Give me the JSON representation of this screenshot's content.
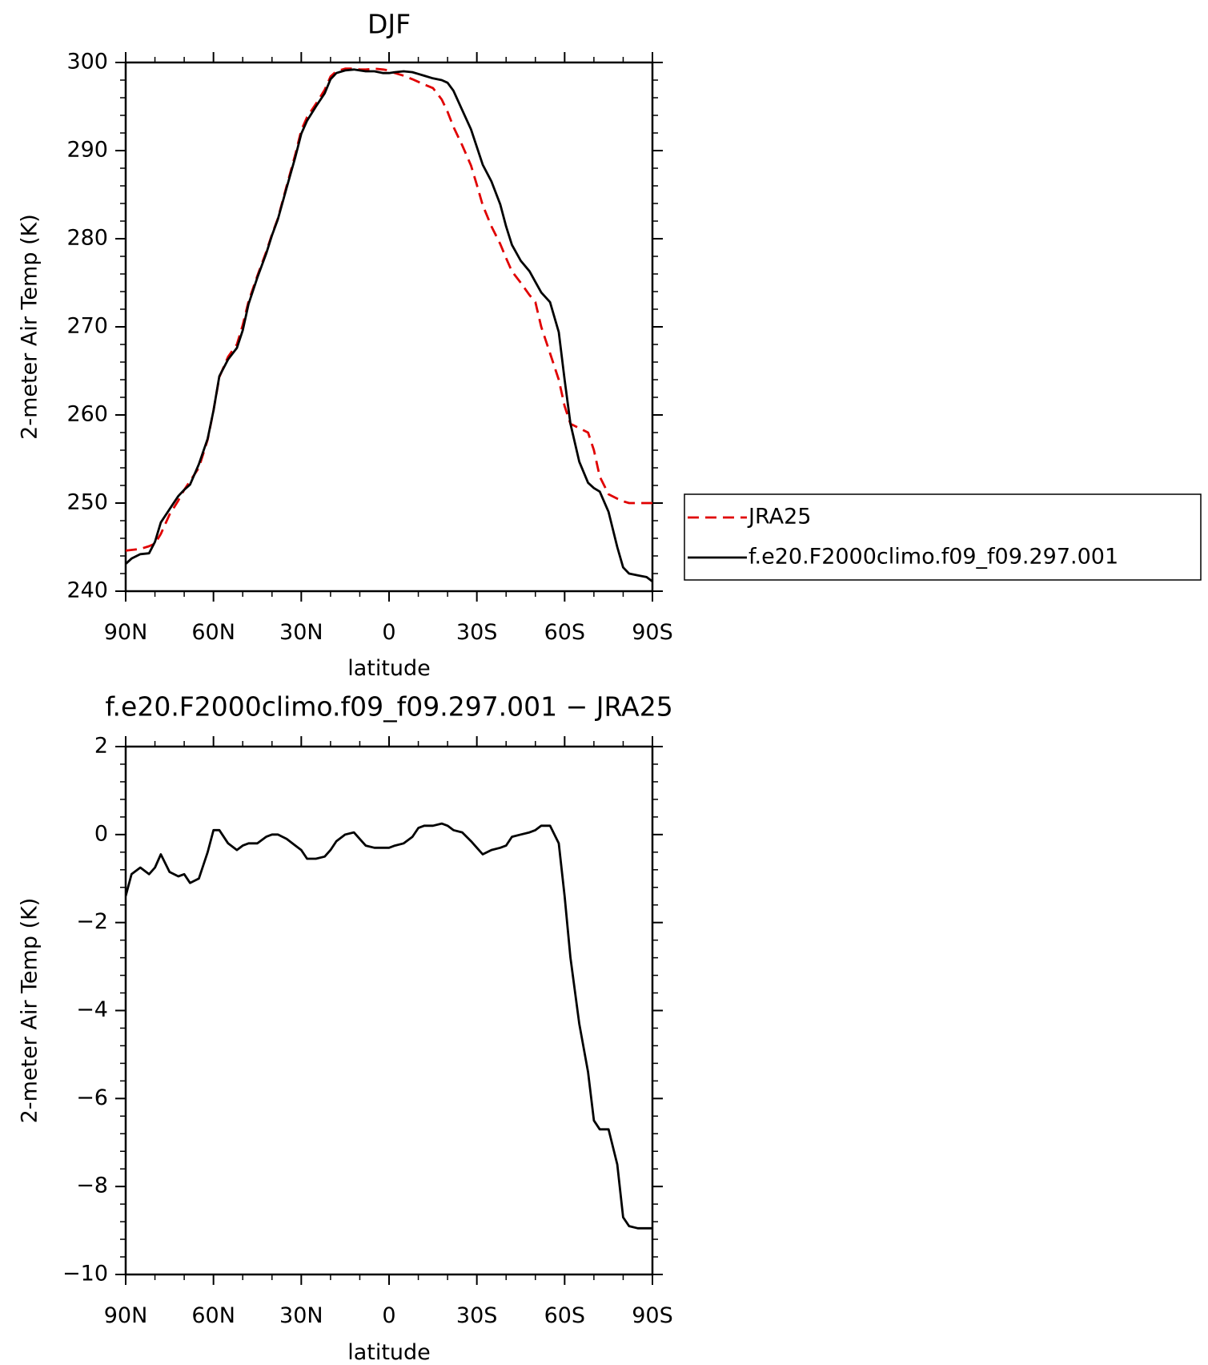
{
  "chart_data": [
    {
      "type": "line",
      "title": "DJF",
      "xlabel": "latitude",
      "ylabel": "2-meter Air Temp (K)",
      "xlim": [
        90,
        -90
      ],
      "ylim": [
        240,
        300
      ],
      "xticks": [
        90,
        60,
        30,
        0,
        -30,
        -60,
        -90
      ],
      "xtick_labels": [
        "90N",
        "60N",
        "30N",
        "0",
        "30S",
        "60S",
        "90S"
      ],
      "yticks": [
        240,
        250,
        260,
        270,
        280,
        290,
        300
      ],
      "ytick_labels": [
        "240",
        "250",
        "260",
        "270",
        "280",
        "290",
        "300"
      ],
      "legend_position": "right",
      "series": [
        {
          "name": "JRA25",
          "color": "#e00000",
          "style": "dashed",
          "x": [
            90,
            85,
            82,
            80,
            78,
            75,
            72,
            70,
            68,
            65,
            62,
            60,
            58,
            55,
            52,
            50,
            48,
            45,
            42,
            40,
            38,
            35,
            32,
            30,
            28,
            25,
            22,
            20,
            18,
            15,
            12,
            10,
            8,
            5,
            2,
            0,
            -2,
            -5,
            -8,
            -10,
            -12,
            -15,
            -18,
            -20,
            -22,
            -25,
            -28,
            -30,
            -32,
            -35,
            -38,
            -40,
            -42,
            -45,
            -48,
            -50,
            -52,
            -55,
            -58,
            -60,
            -62,
            -65,
            -68,
            -70,
            -72,
            -75,
            -78,
            -80,
            -82,
            -85,
            -88,
            -90
          ],
          "y": [
            244.6,
            244.8,
            245.1,
            245.4,
            246.5,
            248.7,
            250.3,
            251.5,
            252.5,
            254.0,
            257.2,
            260.5,
            264.3,
            266.6,
            268.0,
            270.2,
            272.9,
            275.8,
            278.5,
            280.5,
            282.3,
            286.0,
            289.6,
            292.3,
            293.8,
            295.3,
            296.9,
            298.4,
            299.0,
            299.3,
            299.3,
            299.2,
            299.2,
            299.3,
            299.2,
            299.1,
            298.8,
            298.5,
            298.1,
            297.8,
            297.5,
            297.1,
            295.8,
            294.4,
            292.7,
            290.6,
            288.3,
            286.1,
            283.8,
            281.4,
            279.4,
            277.8,
            276.3,
            275.0,
            273.6,
            272.8,
            270.0,
            267.0,
            264.0,
            261.0,
            259.0,
            258.5,
            258.0,
            256.0,
            253.0,
            251.0,
            250.5,
            250.2,
            250.0,
            250.0,
            250.0,
            250.0
          ]
        },
        {
          "name": "f.e20.F2000climo.f09_f09.297.001",
          "color": "#000000",
          "style": "solid",
          "x": [
            90,
            88,
            85,
            82,
            80,
            78,
            75,
            72,
            70,
            68,
            65,
            62,
            60,
            58,
            55,
            52,
            50,
            48,
            45,
            42,
            40,
            38,
            35,
            32,
            30,
            28,
            25,
            22,
            20,
            18,
            15,
            12,
            10,
            8,
            5,
            2,
            0,
            -2,
            -5,
            -8,
            -10,
            -12,
            -15,
            -18,
            -20,
            -22,
            -25,
            -28,
            -30,
            -32,
            -35,
            -38,
            -40,
            -42,
            -45,
            -48,
            -50,
            -52,
            -55,
            -58,
            -60,
            -62,
            -65,
            -68,
            -70,
            -72,
            -75,
            -78,
            -80,
            -82,
            -85,
            -88,
            -90
          ],
          "y": [
            243.1,
            243.7,
            244.2,
            244.3,
            245.6,
            247.8,
            249.3,
            250.8,
            251.5,
            252.1,
            254.4,
            257.3,
            260.5,
            264.4,
            266.3,
            267.6,
            269.6,
            272.6,
            275.6,
            278.3,
            280.4,
            282.2,
            285.8,
            289.3,
            291.9,
            293.4,
            295.0,
            296.5,
            298.1,
            298.8,
            299.1,
            299.2,
            299.1,
            299.0,
            299.0,
            298.8,
            298.8,
            298.9,
            299.0,
            298.9,
            298.7,
            298.5,
            298.2,
            298.0,
            297.7,
            296.8,
            294.6,
            292.4,
            290.4,
            288.4,
            286.5,
            283.9,
            281.4,
            279.3,
            277.5,
            276.3,
            275.1,
            273.9,
            272.8,
            269.4,
            264.0,
            259.0,
            254.7,
            252.3,
            251.7,
            251.3,
            249.0,
            245.0,
            242.7,
            242.0,
            241.8,
            241.6,
            241.1
          ]
        }
      ]
    },
    {
      "type": "line",
      "title": "f.e20.F2000climo.f09_f09.297.001 − JRA25",
      "xlabel": "latitude",
      "ylabel": "2-meter Air Temp (K)",
      "xlim": [
        90,
        -90
      ],
      "ylim": [
        -10,
        2
      ],
      "xticks": [
        90,
        60,
        30,
        0,
        -30,
        -60,
        -90
      ],
      "xtick_labels": [
        "90N",
        "60N",
        "30N",
        "0",
        "30S",
        "60S",
        "90S"
      ],
      "yticks": [
        -10,
        -8,
        -6,
        -4,
        -2,
        0,
        2
      ],
      "ytick_labels": [
        "−10",
        "−8",
        "−6",
        "−4",
        "−2",
        "0",
        "2"
      ],
      "series": [
        {
          "color": "#000000",
          "style": "solid",
          "x": [
            90,
            88,
            85,
            82,
            80,
            78,
            75,
            72,
            70,
            68,
            65,
            62,
            60,
            58,
            55,
            52,
            50,
            48,
            45,
            42,
            40,
            38,
            35,
            32,
            30,
            28,
            25,
            22,
            20,
            18,
            15,
            12,
            10,
            8,
            5,
            2,
            0,
            -2,
            -5,
            -8,
            -10,
            -12,
            -15,
            -18,
            -20,
            -22,
            -25,
            -28,
            -30,
            -32,
            -35,
            -38,
            -40,
            -42,
            -45,
            -48,
            -50,
            -52,
            -55,
            -58,
            -60,
            -62,
            -65,
            -68,
            -70,
            -72,
            -75,
            -78,
            -80,
            -82,
            -85,
            -88,
            -90
          ],
          "y": [
            -1.4,
            -0.9,
            -0.75,
            -0.9,
            -0.75,
            -0.45,
            -0.85,
            -0.95,
            -0.9,
            -1.1,
            -1.0,
            -0.4,
            0.1,
            0.1,
            -0.2,
            -0.35,
            -0.25,
            -0.2,
            -0.2,
            -0.05,
            0.0,
            0.0,
            -0.1,
            -0.25,
            -0.35,
            -0.55,
            -0.55,
            -0.5,
            -0.35,
            -0.15,
            0.0,
            0.05,
            -0.1,
            -0.25,
            -0.3,
            -0.3,
            -0.3,
            -0.25,
            -0.2,
            -0.05,
            0.15,
            0.2,
            0.2,
            0.25,
            0.2,
            0.1,
            0.05,
            -0.15,
            -0.3,
            -0.45,
            -0.35,
            -0.3,
            -0.25,
            -0.05,
            0.0,
            0.05,
            0.1,
            0.2,
            0.2,
            -0.2,
            -1.4,
            -2.8,
            -4.3,
            -5.4,
            -6.5,
            -6.7,
            -6.7,
            -7.5,
            -8.7,
            -8.9,
            -8.95,
            -8.95,
            -8.95
          ]
        }
      ]
    }
  ]
}
